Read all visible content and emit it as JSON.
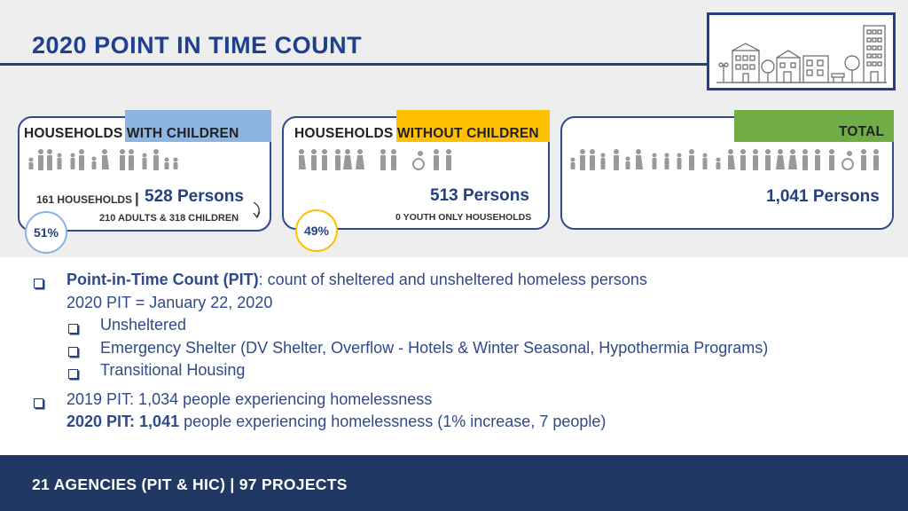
{
  "title": "2020 POINT IN TIME COUNT",
  "cards": {
    "with_children": {
      "heading_prefix": "HOUSEHOLDS",
      "heading_highlight": "WITH CHILDREN",
      "households": "161 HOUSEHOLDS",
      "persons": "528 Persons",
      "adults": "210 ADULTS",
      "amp": "&",
      "children": "318 CHILDREN",
      "percent": "51%",
      "tag_color": "#8db4e2"
    },
    "without_children": {
      "heading_prefix": "HOUSEHOLDS",
      "heading_highlight": "WITHOUT CHILDREN",
      "persons": "513 Persons",
      "youth": "0 YOUTH ONLY HOUSEHOLDS",
      "percent": "49%",
      "tag_color": "#ffc000"
    },
    "total": {
      "heading": "TOTAL",
      "persons": "1,041 Persons",
      "tag_color": "#70ad47"
    }
  },
  "bullets": {
    "pit_term": "Point-in-Time Count (PIT)",
    "pit_def": ": count of sheltered and unsheltered homeless persons",
    "pit_date": "2020 PIT = January 22, 2020",
    "sub1": "Unsheltered",
    "sub2": "Emergency Shelter (DV Shelter, Overflow - Hotels & Winter Seasonal, Hypothermia Programs)",
    "sub3": "Transitional Housing",
    "pit2019": "2019 PIT: 1,034 people experiencing homelessness",
    "pit2020_label": "2020 PIT: 1,041",
    "pit2020_rest": " people experiencing homelessness (1% increase, 7 people)"
  },
  "footer": "21 AGENCIES (PIT & HIC) | 97 PROJECTS",
  "colors": {
    "primary": "#24407f",
    "footer_bg": "#203864"
  }
}
